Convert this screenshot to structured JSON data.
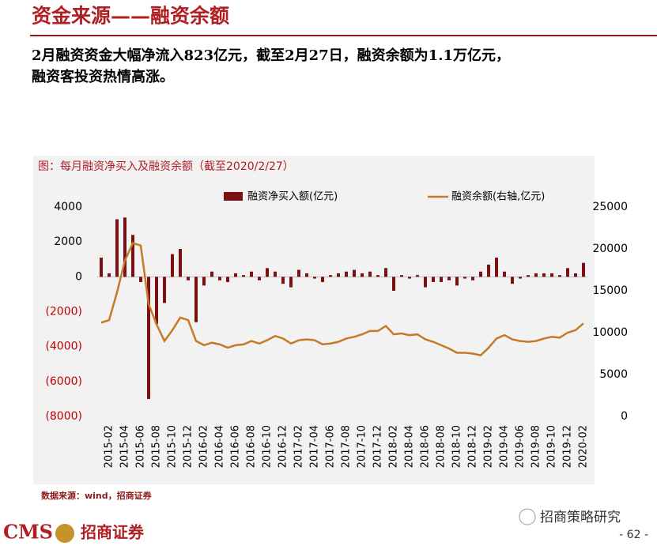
{
  "header": {
    "title": "资金来源——融资余额",
    "body": [
      "2月融资资金大幅净流入823亿元，截至2月27日，融资余额为1.1万亿元，",
      "融资客投资热情高涨。"
    ]
  },
  "chart_data": {
    "type": "bar-line",
    "title": "图：每月融资净买入及融资余额（截至2020/2/27）",
    "categories": [
      null,
      "2015-02",
      null,
      "2015-04",
      null,
      "2015-06",
      null,
      "2015-08",
      null,
      "2015-10",
      null,
      "2015-12",
      null,
      "2016-02",
      null,
      "2016-04",
      null,
      "2016-06",
      null,
      "2016-08",
      null,
      "2016-10",
      null,
      "2016-12",
      null,
      "2017-02",
      null,
      "2017-04",
      null,
      "2017-06",
      null,
      "2017-08",
      null,
      "2017-10",
      null,
      "2017-12",
      null,
      "2018-02",
      null,
      "2018-04",
      null,
      "2018-06",
      null,
      "2018-08",
      null,
      "2018-10",
      null,
      "2018-12",
      null,
      "2019-02",
      null,
      "2019-04",
      null,
      "2019-06",
      null,
      "2019-08",
      null,
      "2019-10",
      null,
      "2019-12",
      null,
      "2020-02"
    ],
    "series": [
      {
        "name": "融资净买入额(亿元)",
        "color": "#7b1113",
        "kind": "bar",
        "values": [
          1100,
          200,
          3300,
          3400,
          2400,
          -300,
          -7000,
          -2700,
          -1500,
          1300,
          1600,
          -200,
          -2600,
          -500,
          300,
          -200,
          -300,
          200,
          100,
          300,
          -200,
          500,
          300,
          -400,
          -600,
          400,
          200,
          -100,
          -300,
          100,
          200,
          300,
          400,
          200,
          300,
          100,
          500,
          -800,
          100,
          -100,
          100,
          -600,
          -300,
          -300,
          -200,
          -500,
          -100,
          -200,
          300,
          700,
          1100,
          300,
          -400,
          -100,
          100,
          200,
          200,
          200,
          100,
          500,
          200,
          800
        ]
      },
      {
        "name": "融资余额(右轴,亿元)",
        "color": "#c47a28",
        "kind": "line",
        "axis": "y2",
        "values": [
          11200,
          11500,
          14800,
          18600,
          20700,
          20400,
          13400,
          11000,
          9000,
          10300,
          11800,
          11500,
          9000,
          8500,
          8800,
          8600,
          8200,
          8500,
          8600,
          9000,
          8700,
          9100,
          9600,
          9300,
          8700,
          9100,
          9200,
          9100,
          8600,
          8700,
          8900,
          9300,
          9500,
          9800,
          10200,
          10200,
          10800,
          9800,
          9900,
          9700,
          9800,
          9200,
          8900,
          8500,
          8100,
          7600,
          7600,
          7500,
          7300,
          8200,
          9300,
          9700,
          9200,
          9000,
          8900,
          9000,
          9300,
          9500,
          9400,
          10000,
          10300,
          11100
        ]
      }
    ],
    "ylim": [
      -8000,
      4000
    ],
    "yticks": [
      4000,
      2000,
      0,
      {
        "value": -2000,
        "label": "(2000)"
      },
      {
        "value": -4000,
        "label": "(4000)"
      },
      {
        "value": -6000,
        "label": "(6000)"
      },
      {
        "value": -8000,
        "label": "(8000)"
      }
    ],
    "y2lim": [
      0,
      25000
    ],
    "y2ticks": [
      25000,
      20000,
      15000,
      10000,
      5000,
      0
    ],
    "source": "数据来源：wind，招商证券"
  },
  "footer": {
    "logo": "CMS",
    "brand": "招商证券",
    "wechat": "招商策略研究",
    "page": "- 62 -"
  }
}
